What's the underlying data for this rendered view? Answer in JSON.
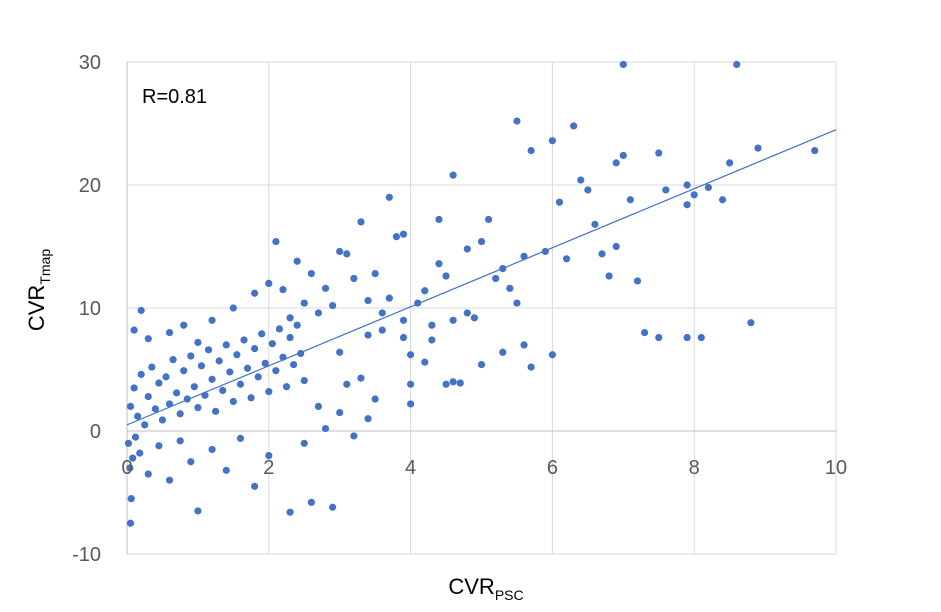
{
  "chart_data": {
    "type": "scatter",
    "x_label": {
      "main": "CVR",
      "sub": "PSC"
    },
    "y_label": {
      "main": "CVR",
      "sub": "Tmap"
    },
    "annotation": "R=0.81",
    "xlim": [
      0,
      10
    ],
    "ylim": [
      -10,
      30
    ],
    "x_ticks": [
      "0",
      "2",
      "4",
      "6",
      "8",
      "10"
    ],
    "y_ticks": [
      "-10",
      "0",
      "10",
      "20",
      "30"
    ],
    "grid": true,
    "point_color": "#4472c4",
    "trendline": {
      "x": [
        0,
        10
      ],
      "y": [
        0.5,
        24.5
      ],
      "color": "#4472c4"
    },
    "series": [
      {
        "points": [
          [
            0.05,
            2.0
          ],
          [
            0.1,
            3.5
          ],
          [
            0.15,
            1.2
          ],
          [
            0.2,
            4.6
          ],
          [
            0.25,
            0.5
          ],
          [
            0.3,
            2.8
          ],
          [
            0.35,
            5.2
          ],
          [
            0.4,
            1.8
          ],
          [
            0.45,
            3.9
          ],
          [
            0.5,
            0.9
          ],
          [
            0.55,
            4.4
          ],
          [
            0.6,
            2.2
          ],
          [
            0.65,
            5.8
          ],
          [
            0.7,
            3.1
          ],
          [
            0.75,
            1.4
          ],
          [
            0.8,
            4.9
          ],
          [
            0.85,
            2.6
          ],
          [
            0.9,
            6.1
          ],
          [
            0.95,
            3.6
          ],
          [
            1.0,
            1.9
          ],
          [
            1.05,
            5.3
          ],
          [
            1.1,
            2.9
          ],
          [
            1.15,
            6.6
          ],
          [
            1.2,
            4.2
          ],
          [
            1.25,
            1.6
          ],
          [
            1.3,
            5.7
          ],
          [
            1.35,
            3.3
          ],
          [
            1.4,
            7.0
          ],
          [
            1.45,
            4.8
          ],
          [
            1.5,
            2.4
          ],
          [
            1.55,
            6.2
          ],
          [
            1.6,
            3.8
          ],
          [
            1.65,
            7.4
          ],
          [
            1.7,
            5.1
          ],
          [
            1.75,
            2.7
          ],
          [
            1.8,
            6.7
          ],
          [
            1.85,
            4.4
          ],
          [
            1.9,
            7.9
          ],
          [
            1.95,
            5.5
          ],
          [
            2.0,
            3.2
          ],
          [
            2.05,
            7.1
          ],
          [
            2.1,
            4.9
          ],
          [
            2.15,
            8.3
          ],
          [
            2.2,
            6.0
          ],
          [
            2.25,
            3.6
          ],
          [
            2.3,
            7.6
          ],
          [
            2.35,
            5.4
          ],
          [
            2.4,
            8.6
          ],
          [
            2.45,
            6.3
          ],
          [
            2.5,
            4.1
          ],
          [
            0.02,
            -1.0
          ],
          [
            0.04,
            -3.0
          ],
          [
            0.06,
            -5.5
          ],
          [
            0.05,
            -7.5
          ],
          [
            0.08,
            -2.2
          ],
          [
            0.12,
            -0.5
          ],
          [
            0.18,
            -1.8
          ],
          [
            0.3,
            -3.5
          ],
          [
            0.45,
            -1.2
          ],
          [
            0.6,
            -4.0
          ],
          [
            0.75,
            -0.8
          ],
          [
            0.9,
            -2.5
          ],
          [
            1.0,
            -6.5
          ],
          [
            1.2,
            -1.5
          ],
          [
            1.4,
            -3.2
          ],
          [
            1.6,
            -0.6
          ],
          [
            1.8,
            -4.5
          ],
          [
            2.0,
            -2.0
          ],
          [
            2.3,
            -6.6
          ],
          [
            2.6,
            -5.8
          ],
          [
            2.9,
            -6.2
          ],
          [
            2.5,
            -1.0
          ],
          [
            2.8,
            0.2
          ],
          [
            3.0,
            1.5
          ],
          [
            3.2,
            -0.4
          ],
          [
            3.4,
            1.0
          ],
          [
            3.1,
            3.8
          ],
          [
            3.3,
            4.3
          ],
          [
            3.5,
            2.6
          ],
          [
            2.7,
            2.0
          ],
          [
            0.1,
            8.2
          ],
          [
            0.2,
            9.8
          ],
          [
            0.3,
            7.5
          ],
          [
            0.6,
            8.0
          ],
          [
            0.8,
            8.6
          ],
          [
            1.0,
            7.2
          ],
          [
            1.2,
            9.0
          ],
          [
            1.5,
            10.0
          ],
          [
            1.8,
            11.2
          ],
          [
            2.0,
            12.0
          ],
          [
            2.2,
            11.5
          ],
          [
            2.1,
            15.4
          ],
          [
            2.4,
            13.8
          ],
          [
            2.6,
            12.8
          ],
          [
            2.8,
            11.6
          ],
          [
            3.0,
            14.6
          ],
          [
            3.1,
            14.4
          ],
          [
            3.2,
            12.4
          ],
          [
            3.4,
            10.6
          ],
          [
            3.3,
            17.0
          ],
          [
            2.9,
            10.2
          ],
          [
            3.5,
            12.8
          ],
          [
            3.6,
            9.6
          ],
          [
            3.7,
            10.8
          ],
          [
            3.8,
            15.8
          ],
          [
            3.9,
            16.0
          ],
          [
            3.7,
            19.0
          ],
          [
            3.9,
            7.6
          ],
          [
            4.0,
            6.2
          ],
          [
            4.2,
            5.6
          ],
          [
            4.4,
            13.6
          ],
          [
            4.5,
            12.6
          ],
          [
            4.2,
            11.4
          ],
          [
            4.1,
            10.4
          ],
          [
            4.3,
            7.4
          ],
          [
            4.0,
            3.8
          ],
          [
            4.5,
            3.8
          ],
          [
            4.6,
            4.0
          ],
          [
            4.7,
            3.9
          ],
          [
            4.0,
            2.2
          ],
          [
            4.4,
            17.2
          ],
          [
            4.6,
            20.8
          ],
          [
            4.8,
            14.8
          ],
          [
            5.0,
            15.4
          ],
          [
            5.1,
            17.2
          ],
          [
            5.3,
            13.2
          ],
          [
            5.2,
            12.4
          ],
          [
            5.4,
            11.6
          ],
          [
            5.5,
            10.4
          ],
          [
            5.6,
            14.2
          ],
          [
            5.0,
            5.4
          ],
          [
            5.3,
            6.4
          ],
          [
            5.6,
            7.0
          ],
          [
            5.7,
            5.2
          ],
          [
            5.5,
            25.2
          ],
          [
            5.7,
            22.8
          ],
          [
            6.0,
            23.6
          ],
          [
            6.1,
            18.6
          ],
          [
            5.9,
            14.6
          ],
          [
            6.2,
            14.0
          ],
          [
            6.0,
            6.2
          ],
          [
            6.3,
            24.8
          ],
          [
            6.4,
            20.4
          ],
          [
            6.5,
            19.6
          ],
          [
            6.6,
            16.8
          ],
          [
            6.7,
            14.4
          ],
          [
            6.8,
            12.6
          ],
          [
            6.9,
            15.0
          ],
          [
            6.9,
            21.8
          ],
          [
            7.0,
            22.4
          ],
          [
            7.0,
            29.8
          ],
          [
            7.1,
            18.8
          ],
          [
            7.2,
            12.2
          ],
          [
            7.3,
            8.0
          ],
          [
            7.5,
            22.6
          ],
          [
            7.6,
            19.6
          ],
          [
            7.5,
            7.6
          ],
          [
            7.9,
            7.6
          ],
          [
            8.1,
            7.6
          ],
          [
            7.9,
            20.0
          ],
          [
            7.9,
            18.4
          ],
          [
            8.0,
            19.2
          ],
          [
            8.2,
            19.8
          ],
          [
            8.4,
            18.8
          ],
          [
            8.5,
            21.8
          ],
          [
            8.6,
            29.8
          ],
          [
            8.8,
            8.8
          ],
          [
            8.9,
            23.0
          ],
          [
            9.7,
            22.8
          ],
          [
            4.8,
            9.6
          ],
          [
            4.9,
            9.2
          ],
          [
            4.6,
            9.0
          ],
          [
            4.3,
            8.6
          ],
          [
            3.9,
            9.0
          ],
          [
            3.6,
            8.2
          ],
          [
            3.4,
            7.8
          ],
          [
            3.0,
            6.4
          ],
          [
            2.7,
            9.6
          ],
          [
            2.5,
            10.4
          ],
          [
            2.3,
            9.2
          ]
        ]
      }
    ]
  }
}
